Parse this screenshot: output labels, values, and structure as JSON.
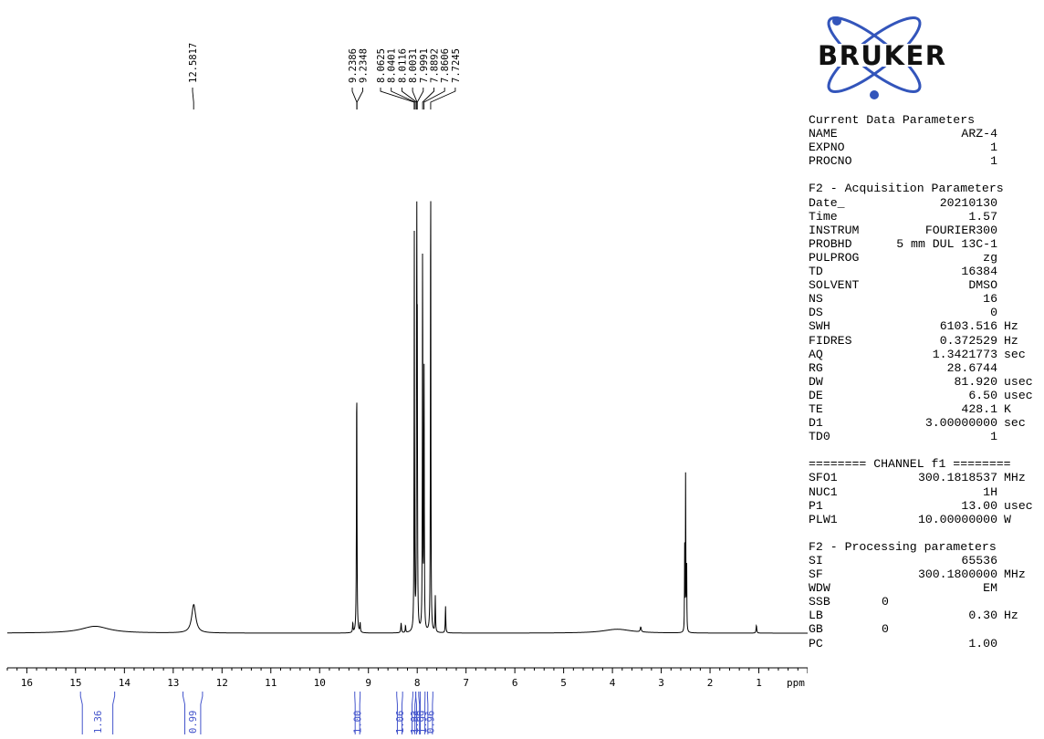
{
  "brand": {
    "logo_text": "BRUKER",
    "ring_color": "#3355bb",
    "dot_color": "#3355bb"
  },
  "chart_data": {
    "type": "line",
    "xlabel": "ppm",
    "xlim": [
      16.4,
      0.0
    ],
    "x_reversed": true,
    "x_ticks": [
      16,
      15,
      14,
      13,
      12,
      11,
      10,
      9,
      8,
      7,
      6,
      5,
      4,
      3,
      2,
      1
    ],
    "peaks": [
      {
        "ppm": 14.6,
        "height": 0.014,
        "width": 0.35
      },
      {
        "ppm": 12.58,
        "height": 0.058,
        "width": 0.05
      },
      {
        "ppm": 9.24,
        "height": 0.53,
        "width": 0.006
      },
      {
        "ppm": 9.32,
        "height": 0.02,
        "width": 0.006
      },
      {
        "ppm": 9.17,
        "height": 0.02,
        "width": 0.006
      },
      {
        "ppm": 8.33,
        "height": 0.02,
        "width": 0.008
      },
      {
        "ppm": 8.24,
        "height": 0.015,
        "width": 0.006
      },
      {
        "ppm": 8.06,
        "height": 0.81,
        "width": 0.005
      },
      {
        "ppm": 8.01,
        "height": 0.84,
        "width": 0.005
      },
      {
        "ppm": 7.999,
        "height": 0.52,
        "width": 0.005
      },
      {
        "ppm": 7.89,
        "height": 0.82,
        "width": 0.005
      },
      {
        "ppm": 7.86,
        "height": 0.56,
        "width": 0.005
      },
      {
        "ppm": 7.725,
        "height": 1.0,
        "width": 0.005
      },
      {
        "ppm": 7.63,
        "height": 0.074,
        "width": 0.006
      },
      {
        "ppm": 7.42,
        "height": 0.055,
        "width": 0.006
      },
      {
        "ppm": 3.9,
        "height": 0.008,
        "width": 0.35
      },
      {
        "ppm": 3.42,
        "height": 0.01,
        "width": 0.012
      },
      {
        "ppm": 2.5,
        "height": 0.34,
        "width": 0.004
      },
      {
        "ppm": 2.52,
        "height": 0.17,
        "width": 0.004
      },
      {
        "ppm": 2.48,
        "height": 0.17,
        "width": 0.004
      },
      {
        "ppm": 1.05,
        "height": 0.016,
        "width": 0.008
      }
    ],
    "peak_labels": [
      {
        "label": "12.5817",
        "ppm": 12.5817
      },
      {
        "label": "9.2386",
        "ppm": 9.2386
      },
      {
        "label": "9.2348",
        "ppm": 9.2348
      },
      {
        "label": "8.0625",
        "ppm": 8.0625
      },
      {
        "label": "8.0401",
        "ppm": 8.0401
      },
      {
        "label": "8.0116",
        "ppm": 8.0116
      },
      {
        "label": "8.0031",
        "ppm": 8.0031
      },
      {
        "label": "7.9991",
        "ppm": 7.9991
      },
      {
        "label": "7.8892",
        "ppm": 7.8892
      },
      {
        "label": "7.8606",
        "ppm": 7.8606
      },
      {
        "label": "7.7245",
        "ppm": 7.7245
      }
    ],
    "integrals": [
      {
        "value": "1.36",
        "from": 14.9,
        "to": 14.2
      },
      {
        "value": "0.99",
        "from": 12.8,
        "to": 12.4
      },
      {
        "value": "1.00",
        "from": 9.28,
        "to": 9.17
      },
      {
        "value": "1.06",
        "from": 8.42,
        "to": 8.3
      },
      {
        "value": "1.92",
        "from": 8.09,
        "to": 8.03
      },
      {
        "value": "1.08",
        "from": 8.03,
        "to": 7.97
      },
      {
        "value": "1.99",
        "from": 7.94,
        "to": 7.84
      },
      {
        "value": "0.96",
        "from": 7.79,
        "to": 7.68
      }
    ],
    "integral_color": "#4455cc"
  },
  "params": {
    "current": {
      "heading": "Current Data Parameters",
      "rows": [
        {
          "k": "NAME",
          "v": "ARZ-4",
          "u": ""
        },
        {
          "k": "EXPNO",
          "v": "1",
          "u": ""
        },
        {
          "k": "PROCNO",
          "v": "1",
          "u": ""
        }
      ]
    },
    "acq": {
      "heading": "F2 - Acquisition Parameters",
      "rows": [
        {
          "k": "Date_",
          "v": "20210130",
          "u": ""
        },
        {
          "k": "Time",
          "v": "1.57",
          "u": ""
        },
        {
          "k": "INSTRUM",
          "v": "FOURIER300",
          "u": ""
        },
        {
          "k": "PROBHD",
          "v": "5 mm DUL 13C-1",
          "u": ""
        },
        {
          "k": "PULPROG",
          "v": "zg",
          "u": ""
        },
        {
          "k": "TD",
          "v": "16384",
          "u": ""
        },
        {
          "k": "SOLVENT",
          "v": "DMSO",
          "u": ""
        },
        {
          "k": "NS",
          "v": "16",
          "u": ""
        },
        {
          "k": "DS",
          "v": "0",
          "u": ""
        },
        {
          "k": "SWH",
          "v": "6103.516",
          "u": "Hz"
        },
        {
          "k": "FIDRES",
          "v": "0.372529",
          "u": "Hz"
        },
        {
          "k": "AQ",
          "v": "1.3421773",
          "u": "sec"
        },
        {
          "k": "RG",
          "v": "28.6744",
          "u": ""
        },
        {
          "k": "DW",
          "v": "81.920",
          "u": "usec"
        },
        {
          "k": "DE",
          "v": "6.50",
          "u": "usec"
        },
        {
          "k": "TE",
          "v": "428.1",
          "u": "K"
        },
        {
          "k": "D1",
          "v": "3.00000000",
          "u": "sec"
        },
        {
          "k": "TD0",
          "v": "1",
          "u": ""
        }
      ]
    },
    "channel": {
      "heading": "======== CHANNEL f1 ========",
      "rows": [
        {
          "k": "SFO1",
          "v": "300.1818537",
          "u": "MHz"
        },
        {
          "k": "NUC1",
          "v": "1H",
          "u": ""
        },
        {
          "k": "P1",
          "v": "13.00",
          "u": "usec"
        },
        {
          "k": "PLW1",
          "v": "10.00000000",
          "u": "W"
        }
      ]
    },
    "proc": {
      "heading": "F2 - Processing parameters",
      "rows": [
        {
          "k": "SI",
          "v": "65536",
          "u": ""
        },
        {
          "k": "SF",
          "v": "300.1800000",
          "u": "MHz"
        },
        {
          "k": "WDW",
          "v": "EM",
          "u": ""
        },
        {
          "k": "SSB",
          "v": "0",
          "u": "",
          "left": true
        },
        {
          "k": "LB",
          "v": "0.30",
          "u": "Hz"
        },
        {
          "k": "GB",
          "v": "0",
          "u": "",
          "left": true
        },
        {
          "k": "PC",
          "v": "1.00",
          "u": ""
        }
      ]
    }
  }
}
